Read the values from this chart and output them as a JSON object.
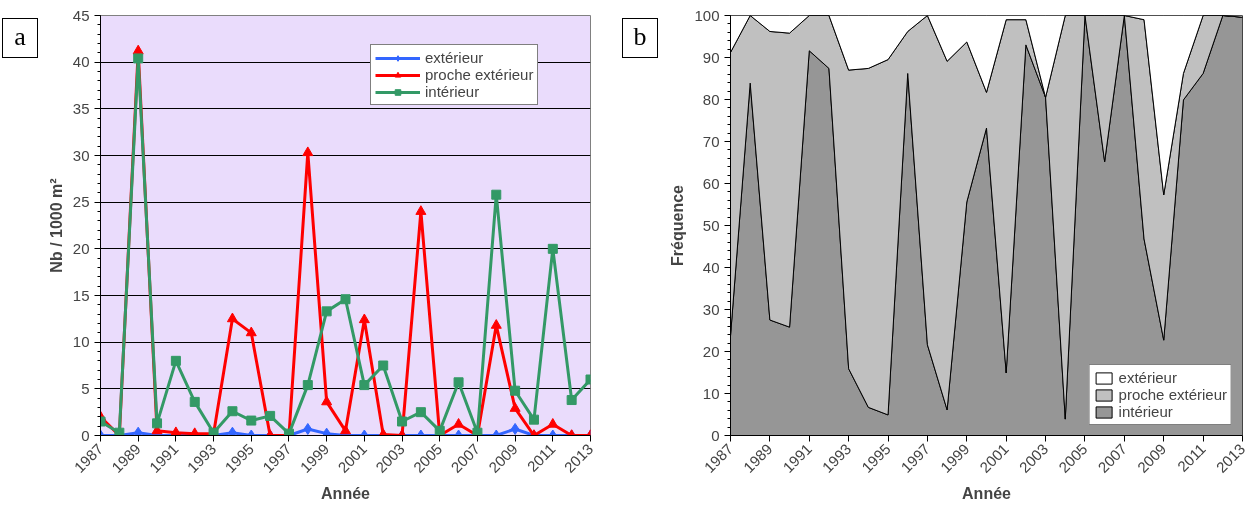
{
  "chart_data": [
    {
      "type": "line",
      "xlabel": "Année",
      "ylabel": "Nb / 1000 m²",
      "annotations": [
        "a"
      ],
      "x": [
        1987,
        1988,
        1989,
        1990,
        1991,
        1992,
        1993,
        1994,
        1995,
        1996,
        1997,
        1998,
        1999,
        2000,
        2001,
        2002,
        2003,
        2004,
        2005,
        2006,
        2007,
        2008,
        2009,
        2010,
        2011,
        2012,
        2013
      ],
      "series": [
        {
          "name": "extérieur",
          "color": "#3366ff",
          "marker": "diamond",
          "values": [
            0,
            0,
            0.3,
            0,
            0,
            0,
            0,
            0.3,
            0,
            0,
            0,
            0.7,
            0.2,
            0,
            0,
            0,
            0,
            0,
            0,
            0,
            0,
            0,
            0.7,
            0,
            0,
            0,
            0
          ]
        },
        {
          "name": "proche extérieur",
          "color": "#ff0000",
          "marker": "triangle",
          "values": [
            2.0,
            0,
            41.2,
            0.5,
            0.3,
            0.2,
            0.2,
            12.5,
            11.0,
            0,
            0,
            30.3,
            3.6,
            0.5,
            12.4,
            0.1,
            0,
            24.0,
            0,
            1.2,
            0,
            11.8,
            2.9,
            0,
            1.2,
            0,
            0
          ]
        },
        {
          "name": "intérieur",
          "color": "#339966",
          "marker": "square",
          "values": [
            1.5,
            0.3,
            40.4,
            1.3,
            8.0,
            3.6,
            0.3,
            2.6,
            1.6,
            2.1,
            0.2,
            5.4,
            13.3,
            14.6,
            5.4,
            7.5,
            1.5,
            2.5,
            0.5,
            5.7,
            0.3,
            25.8,
            4.8,
            1.7,
            20.0,
            3.8,
            6.0
          ]
        }
      ],
      "xlim": [
        1987,
        2013
      ],
      "xticks": [
        1987,
        1989,
        1991,
        1993,
        1995,
        1997,
        1999,
        2001,
        2003,
        2005,
        2007,
        2009,
        2011,
        2013
      ],
      "ylim": [
        0,
        45
      ],
      "yticks": [
        0,
        5,
        10,
        15,
        20,
        25,
        30,
        35,
        40,
        45
      ],
      "grid": "y",
      "legend": "top right"
    },
    {
      "type": "area",
      "stacked": true,
      "xlabel": "Année",
      "ylabel": "Fréquence",
      "annotations": [
        "b"
      ],
      "x": [
        1987,
        1988,
        1989,
        1990,
        1991,
        1992,
        1993,
        1994,
        1995,
        1996,
        1997,
        1998,
        1999,
        2000,
        2001,
        2002,
        2003,
        2004,
        2005,
        2006,
        2007,
        2008,
        2009,
        2010,
        2011,
        2012,
        2013
      ],
      "series": [
        {
          "name": "intérieur",
          "color": "#969696",
          "values": [
            23.7,
            83.9,
            27.5,
            25.8,
            91.6,
            87.4,
            15.9,
            6.7,
            4.9,
            86.2,
            21.6,
            6.1,
            55.6,
            73.2,
            14.9,
            93.0,
            80.5,
            3.9,
            100,
            65.2,
            100,
            46.8,
            22.7,
            79.9,
            86.2,
            100,
            99.6
          ]
        },
        {
          "name": "proche extérieur",
          "color": "#c0c0c0",
          "values": [
            67.5,
            16.1,
            68.7,
            70.0,
            8.4,
            12.6,
            71.1,
            80.7,
            84.6,
            10.0,
            78.4,
            83.0,
            38.1,
            8.5,
            84.1,
            6.0,
            0,
            96.1,
            0,
            34.8,
            0,
            52.2,
            34.6,
            6.3,
            13.8,
            0,
            0
          ]
        },
        {
          "name": "extérieur",
          "color": "#ffffff",
          "values": [
            8.8,
            0,
            3.8,
            4.2,
            0,
            0,
            13.0,
            12.6,
            10.5,
            3.8,
            0,
            10.9,
            6.3,
            18.3,
            1.0,
            1.0,
            19.5,
            0,
            0,
            0,
            0,
            1.0,
            42.7,
            13.8,
            0,
            0,
            0.4
          ]
        }
      ],
      "xlim": [
        1987,
        2013
      ],
      "xticks": [
        1987,
        1989,
        1991,
        1993,
        1995,
        1997,
        1999,
        2001,
        2003,
        2005,
        2007,
        2009,
        2011,
        2013
      ],
      "ylim": [
        0,
        100
      ],
      "yticks": [
        0,
        10,
        20,
        30,
        40,
        50,
        60,
        70,
        80,
        90,
        100
      ],
      "grid": false,
      "legend": "bottom right"
    }
  ]
}
